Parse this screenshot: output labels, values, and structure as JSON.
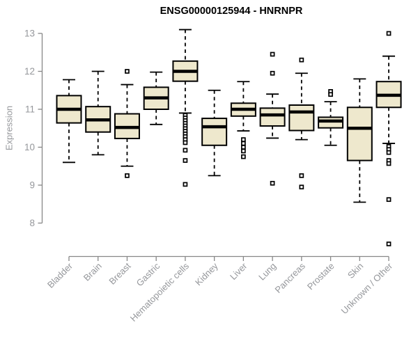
{
  "title": "ENSG00000125944 - HNRNPR",
  "chart_data": {
    "type": "boxplot",
    "title": "ENSG00000125944 - HNRNPR",
    "ylabel": "Expression",
    "ylim": [
      8,
      13
    ],
    "yticks": [
      8,
      9,
      10,
      11,
      12,
      13
    ],
    "grid": false,
    "legend": "none",
    "categories": [
      "Bladder",
      "Brain",
      "Breast",
      "Gastric",
      "Hematopoietic cells",
      "Kidney",
      "Liver",
      "Lung",
      "Pancreas",
      "Prostate",
      "Skin",
      "Unknown / Other"
    ],
    "series": [
      {
        "name": "Bladder",
        "low": 9.6,
        "q1": 10.64,
        "median": 11.0,
        "q3": 11.36,
        "high": 11.78,
        "outliers": []
      },
      {
        "name": "Brain",
        "low": 9.8,
        "q1": 10.4,
        "median": 10.72,
        "q3": 11.07,
        "high": 12.0,
        "outliers": []
      },
      {
        "name": "Breast",
        "low": 9.5,
        "q1": 10.23,
        "median": 10.52,
        "q3": 10.88,
        "high": 11.65,
        "outliers": [
          12.0,
          9.25
        ]
      },
      {
        "name": "Gastric",
        "low": 10.6,
        "q1": 11.0,
        "median": 11.3,
        "q3": 11.58,
        "high": 11.98,
        "outliers": []
      },
      {
        "name": "Hematopoietic cells",
        "low": 10.9,
        "q1": 11.74,
        "median": 12.0,
        "q3": 12.27,
        "high": 13.1,
        "outliers": [
          10.84,
          10.77,
          10.7,
          10.63,
          10.56,
          10.49,
          10.42,
          10.35,
          10.28,
          10.2,
          10.12,
          9.92,
          9.65,
          9.02
        ]
      },
      {
        "name": "Kidney",
        "low": 9.25,
        "q1": 10.05,
        "median": 10.54,
        "q3": 10.76,
        "high": 11.5,
        "outliers": []
      },
      {
        "name": "Liver",
        "low": 10.43,
        "q1": 10.82,
        "median": 11.0,
        "q3": 11.16,
        "high": 11.73,
        "outliers": [
          10.2,
          10.1,
          10.0,
          9.9,
          9.75
        ]
      },
      {
        "name": "Lung",
        "low": 10.24,
        "q1": 10.56,
        "median": 10.85,
        "q3": 11.03,
        "high": 11.4,
        "outliers": [
          12.45,
          11.95,
          9.05
        ]
      },
      {
        "name": "Pancreas",
        "low": 10.2,
        "q1": 10.44,
        "median": 10.93,
        "q3": 11.11,
        "high": 11.95,
        "outliers": [
          12.3,
          9.25,
          8.95
        ]
      },
      {
        "name": "Prostate",
        "low": 10.05,
        "q1": 10.51,
        "median": 10.69,
        "q3": 10.79,
        "high": 11.2,
        "outliers": [
          11.47,
          11.39
        ]
      },
      {
        "name": "Skin",
        "low": 8.55,
        "q1": 9.65,
        "median": 10.5,
        "q3": 11.05,
        "high": 11.8,
        "outliers": []
      },
      {
        "name": "Unknown / Other",
        "low": 10.1,
        "q1": 11.05,
        "median": 11.37,
        "q3": 11.73,
        "high": 12.4,
        "outliers": [
          13.0,
          10.02,
          9.94,
          9.86,
          9.65,
          9.57,
          8.62,
          7.45
        ]
      }
    ],
    "colors": {
      "box_fill": "#EEE8CD",
      "box_border": "#000000",
      "median": "#000000",
      "whisker": "#000000",
      "outlier_fill": "#FFFFFF",
      "axis": "#878787",
      "tick_label": "#95979B",
      "title": "#000000"
    }
  }
}
